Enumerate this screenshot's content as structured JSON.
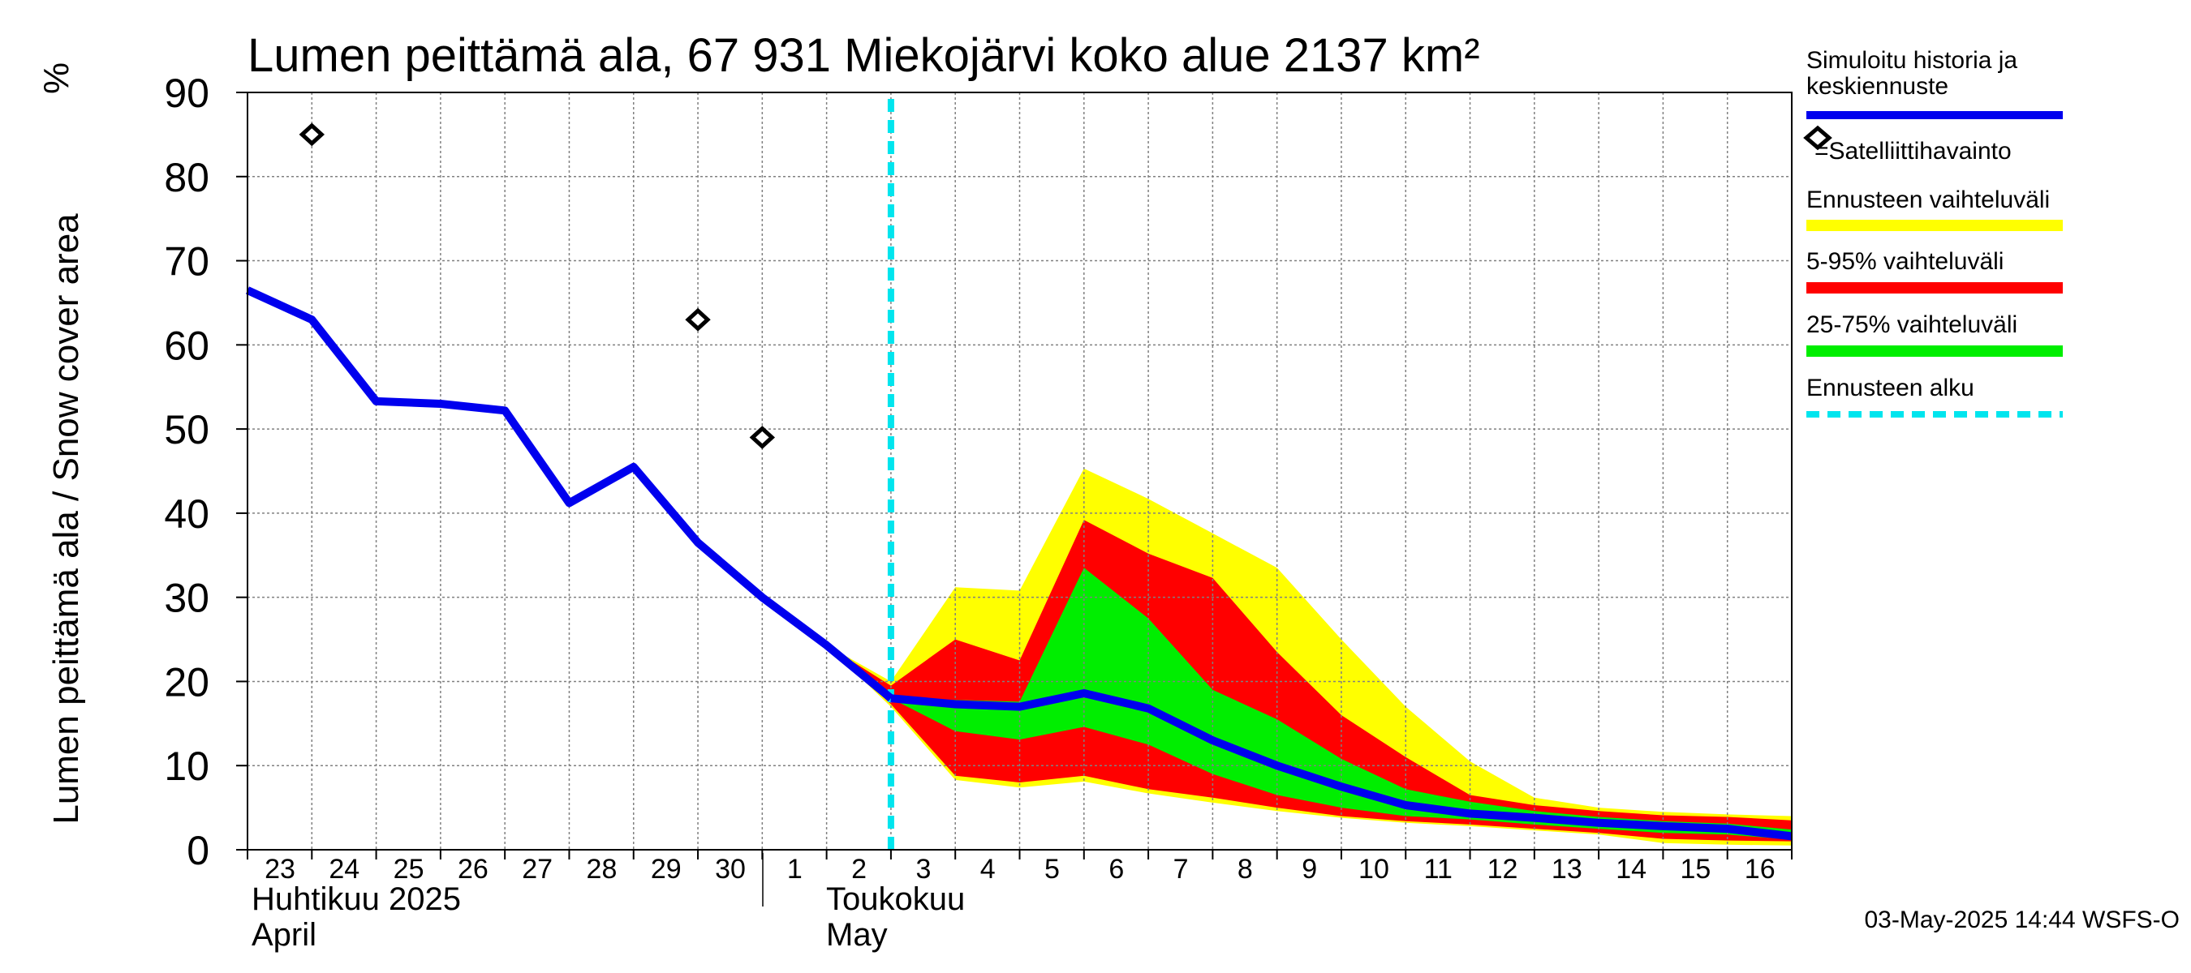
{
  "chart_data": {
    "type": "area",
    "title": "Lumen peittämä ala, 67 931 Miekojärvi koko alue 2137 km²",
    "ylabel": "Lumen peittämä ala / Snow cover area",
    "yunit": "%",
    "ylim": [
      0,
      90
    ],
    "yticks": [
      0,
      10,
      20,
      30,
      40,
      50,
      60,
      70,
      80,
      90
    ],
    "x_start": 23,
    "x_end": 47,
    "x_ticks": [
      {
        "x": 23,
        "label": "23"
      },
      {
        "x": 24,
        "label": "24"
      },
      {
        "x": 25,
        "label": "25"
      },
      {
        "x": 26,
        "label": "26"
      },
      {
        "x": 27,
        "label": "27"
      },
      {
        "x": 28,
        "label": "28"
      },
      {
        "x": 29,
        "label": "29"
      },
      {
        "x": 30,
        "label": "30"
      },
      {
        "x": 31,
        "label": "1"
      },
      {
        "x": 32,
        "label": "2"
      },
      {
        "x": 33,
        "label": "3"
      },
      {
        "x": 34,
        "label": "4"
      },
      {
        "x": 35,
        "label": "5"
      },
      {
        "x": 36,
        "label": "6"
      },
      {
        "x": 37,
        "label": "7"
      },
      {
        "x": 38,
        "label": "8"
      },
      {
        "x": 39,
        "label": "9"
      },
      {
        "x": 40,
        "label": "10"
      },
      {
        "x": 41,
        "label": "11"
      },
      {
        "x": 42,
        "label": "12"
      },
      {
        "x": 43,
        "label": "13"
      },
      {
        "x": 44,
        "label": "14"
      },
      {
        "x": 45,
        "label": "15"
      },
      {
        "x": 46,
        "label": "16"
      }
    ],
    "month_labels": {
      "april_fi": "Huhtikuu  2025",
      "april_en": "April",
      "may_fi": "Toukokuu",
      "may_en": "May"
    },
    "forecast_start_x": 33,
    "history": {
      "name": "Simuloitu historia ja keskiennuste",
      "x": [
        23,
        24,
        25,
        26,
        27,
        28,
        29,
        30,
        31,
        32,
        33
      ],
      "y": [
        66.5,
        63,
        53.3,
        53,
        52.2,
        41.2,
        45.5,
        36.5,
        30,
        24.3,
        18
      ]
    },
    "median_forecast": {
      "x": [
        33,
        34,
        35,
        36,
        37,
        38,
        39,
        40,
        41,
        42,
        43,
        44,
        45,
        46,
        47
      ],
      "y": [
        18,
        17.3,
        17,
        18.6,
        16.8,
        13,
        10,
        7.5,
        5.3,
        4.3,
        3.8,
        3.2,
        2.8,
        2.5,
        1.6
      ]
    },
    "satellite_observations": {
      "name": "=Satelliittihavainto",
      "x": [
        24,
        30,
        31
      ],
      "y": [
        85,
        63,
        49
      ]
    },
    "bands": [
      {
        "name": "Ennusteen vaihteluväli",
        "color": "#ffff00",
        "x": [
          32,
          33,
          34,
          35,
          36,
          37,
          38,
          39,
          40,
          41,
          42,
          43,
          44,
          45,
          46,
          47
        ],
        "upper": [
          24.3,
          20,
          31.2,
          30.8,
          45.3,
          41.7,
          37.6,
          33.5,
          25,
          17,
          10.5,
          6.2,
          5,
          4.5,
          4.2,
          4
        ],
        "lower": [
          24.3,
          17,
          8.3,
          7.4,
          8.1,
          6.7,
          5.6,
          4.6,
          3.8,
          3.2,
          2.8,
          2.3,
          1.8,
          0.8,
          0.6,
          0.5
        ]
      },
      {
        "name": "5-95% vaihteluväli",
        "color": "#ff0000",
        "x": [
          32,
          33,
          34,
          35,
          36,
          37,
          38,
          39,
          40,
          41,
          42,
          43,
          44,
          45,
          46,
          47
        ],
        "upper": [
          24.3,
          19.5,
          25,
          22.5,
          39.2,
          35.2,
          32.3,
          23.5,
          16,
          11,
          6.5,
          5.3,
          4.6,
          4.1,
          3.9,
          3.5
        ],
        "lower": [
          24.3,
          17.3,
          8.8,
          8,
          8.8,
          7.2,
          6.2,
          5,
          4,
          3.4,
          3,
          2.5,
          2,
          1.3,
          1.1,
          1
        ]
      },
      {
        "name": "25-75% vaihteluväli",
        "color": "#00ee00",
        "x": [
          33,
          34,
          35,
          36,
          37,
          38,
          39,
          40,
          41,
          42,
          43,
          44,
          45,
          46,
          47
        ],
        "upper": [
          18,
          17.8,
          17.6,
          33.5,
          27.5,
          19,
          15.5,
          10.8,
          7.2,
          5.7,
          4.6,
          3.9,
          3.4,
          3.1,
          2.4
        ],
        "lower": [
          18,
          14.1,
          13.1,
          14.6,
          12.5,
          9,
          6.5,
          5,
          4,
          3.6,
          3,
          2.5,
          2,
          1.8,
          1.2
        ]
      }
    ],
    "legend": {
      "history_line1": "Simuloitu historia ja",
      "history_line2": "keskiennuste",
      "satellite": "=Satelliittihavainto",
      "range_full": "Ennusteen vaihteluväli",
      "range_5_95": "5-95% vaihteluväli",
      "range_25_75": "25-75% vaihteluväli",
      "forecast_start": "Ennusteen alku"
    },
    "colors": {
      "median": "#0000ee",
      "forecast_start": "#00e5ee",
      "full_range": "#ffff00",
      "range_5_95": "#ff0000",
      "range_25_75": "#00ee00",
      "grid": "#808080"
    }
  },
  "footer": "03-May-2025 14:44 WSFS-O"
}
